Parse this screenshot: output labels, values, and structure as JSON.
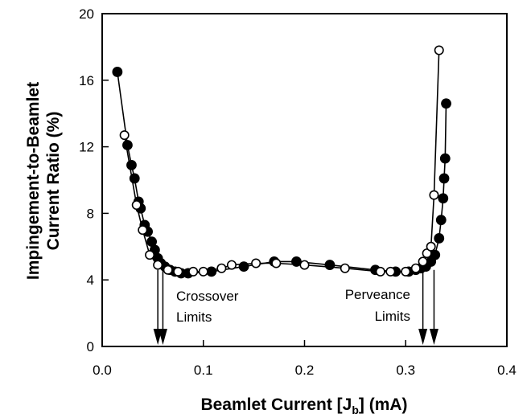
{
  "chart_data": {
    "type": "scatter",
    "xlabel": "Beamlet Current [J",
    "xlabel_sub": "b",
    "xlabel_suffix": "] (mA)",
    "ylabel_line1": "Impingement-to-Beamlet",
    "ylabel_line2": "Current Ratio (%)",
    "xlim": [
      0.0,
      0.4
    ],
    "ylim": [
      0,
      20
    ],
    "x_ticks": [
      0.0,
      0.1,
      0.2,
      0.3,
      0.4
    ],
    "x_tick_labels": [
      "0.0",
      "0.1",
      "0.2",
      "0.3",
      "0.4"
    ],
    "y_ticks": [
      0,
      4,
      8,
      12,
      16,
      20
    ],
    "y_tick_labels": [
      "0",
      "4",
      "8",
      "12",
      "16",
      "20"
    ],
    "grid": false,
    "series": [
      {
        "marker": "filled-circle",
        "color": "#000000",
        "points": [
          [
            0.015,
            16.5
          ],
          [
            0.025,
            12.1
          ],
          [
            0.029,
            10.9
          ],
          [
            0.032,
            10.1
          ],
          [
            0.036,
            8.7
          ],
          [
            0.038,
            8.3
          ],
          [
            0.042,
            7.3
          ],
          [
            0.045,
            6.9
          ],
          [
            0.049,
            6.3
          ],
          [
            0.052,
            5.8
          ],
          [
            0.055,
            5.3
          ],
          [
            0.058,
            5.0
          ],
          [
            0.062,
            4.8
          ],
          [
            0.067,
            4.6
          ],
          [
            0.072,
            4.5
          ],
          [
            0.078,
            4.4
          ],
          [
            0.085,
            4.4
          ],
          [
            0.108,
            4.5
          ],
          [
            0.14,
            4.8
          ],
          [
            0.17,
            5.1
          ],
          [
            0.192,
            5.1
          ],
          [
            0.225,
            4.9
          ],
          [
            0.27,
            4.6
          ],
          [
            0.29,
            4.5
          ],
          [
            0.303,
            4.5
          ],
          [
            0.31,
            4.6
          ],
          [
            0.315,
            4.7
          ],
          [
            0.32,
            4.8
          ],
          [
            0.325,
            5.1
          ],
          [
            0.329,
            5.5
          ],
          [
            0.333,
            6.5
          ],
          [
            0.335,
            7.6
          ],
          [
            0.337,
            8.9
          ],
          [
            0.338,
            10.1
          ],
          [
            0.339,
            11.3
          ],
          [
            0.34,
            14.6
          ]
        ]
      },
      {
        "marker": "open-circle",
        "color": "#000000",
        "points": [
          [
            0.022,
            12.7
          ],
          [
            0.034,
            8.5
          ],
          [
            0.04,
            7.0
          ],
          [
            0.047,
            5.5
          ],
          [
            0.055,
            4.9
          ],
          [
            0.065,
            4.6
          ],
          [
            0.075,
            4.5
          ],
          [
            0.09,
            4.5
          ],
          [
            0.1,
            4.5
          ],
          [
            0.118,
            4.7
          ],
          [
            0.128,
            4.9
          ],
          [
            0.152,
            5.0
          ],
          [
            0.172,
            5.0
          ],
          [
            0.2,
            4.9
          ],
          [
            0.24,
            4.7
          ],
          [
            0.275,
            4.5
          ],
          [
            0.285,
            4.5
          ],
          [
            0.3,
            4.5
          ],
          [
            0.31,
            4.7
          ],
          [
            0.317,
            5.1
          ],
          [
            0.321,
            5.6
          ],
          [
            0.325,
            6.0
          ],
          [
            0.328,
            9.1
          ],
          [
            0.333,
            17.8
          ]
        ]
      }
    ],
    "annotations": [
      {
        "id": "crossover",
        "lines": [
          "Crossover",
          "Limits"
        ],
        "arrows_x": [
          0.055,
          0.06
        ]
      },
      {
        "id": "perveance",
        "lines": [
          "Perveance",
          "Limits"
        ],
        "arrows_x": [
          0.317,
          0.328
        ]
      }
    ]
  }
}
